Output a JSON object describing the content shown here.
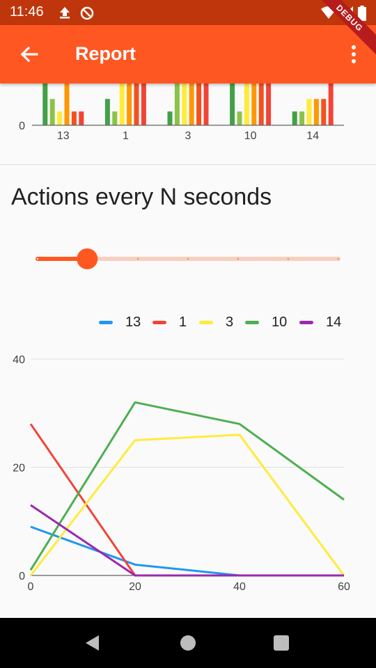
{
  "status_bar": {
    "time": "11:46",
    "debug_label": "DEBUG"
  },
  "app_bar": {
    "title": "Report"
  },
  "bar_chart_section": {
    "chart_data": {
      "type": "bar",
      "categories": [
        "13",
        "1",
        "3",
        "10",
        "14"
      ],
      "y_tick_labels": [
        "0"
      ],
      "ylim": [
        0,
        10
      ],
      "bar_colors": [
        "#43a047",
        "#8bc34a",
        "#ffeb3b",
        "#ff9800",
        "#f4511e",
        "#f44336"
      ],
      "series": [
        {
          "values": [
            10,
            6.3,
            3.3,
            10,
            3.3
          ]
        },
        {
          "values": [
            6.3,
            3.3,
            10,
            3.3,
            3.3
          ]
        },
        {
          "values": [
            3.3,
            10,
            10,
            10,
            6.3
          ]
        },
        {
          "values": [
            10,
            10,
            10,
            10,
            6.3
          ]
        },
        {
          "values": [
            3.3,
            10,
            10,
            10,
            6.3
          ]
        },
        {
          "values": [
            3.3,
            10,
            10,
            10,
            10
          ]
        }
      ]
    }
  },
  "section": {
    "title": "Actions every N seconds"
  },
  "slider": {
    "value_fraction": 0.165,
    "divisions": 6,
    "active_color": "#ff5722",
    "inactive_color": "#f8cfc0"
  },
  "line_chart_section": {
    "chart_data": {
      "type": "line",
      "x": [
        0,
        20,
        40,
        60
      ],
      "x_tick_labels": [
        "0",
        "20",
        "40",
        "60"
      ],
      "y_tick_labels": [
        "0",
        "20",
        "40"
      ],
      "ylim": [
        0,
        40
      ],
      "grid": true,
      "legend_position": "top-right",
      "series": [
        {
          "name": "13",
          "color": "#2196f3",
          "values": [
            9,
            2,
            0,
            0
          ]
        },
        {
          "name": "1",
          "color": "#f44336",
          "values": [
            28,
            0,
            0,
            0
          ]
        },
        {
          "name": "3",
          "color": "#ffeb3b",
          "values": [
            0,
            25,
            26,
            0
          ]
        },
        {
          "name": "10",
          "color": "#4caf50",
          "values": [
            1,
            32,
            28,
            14
          ]
        },
        {
          "name": "14",
          "color": "#9c27b0",
          "values": [
            13,
            0,
            0,
            0
          ]
        }
      ]
    }
  }
}
